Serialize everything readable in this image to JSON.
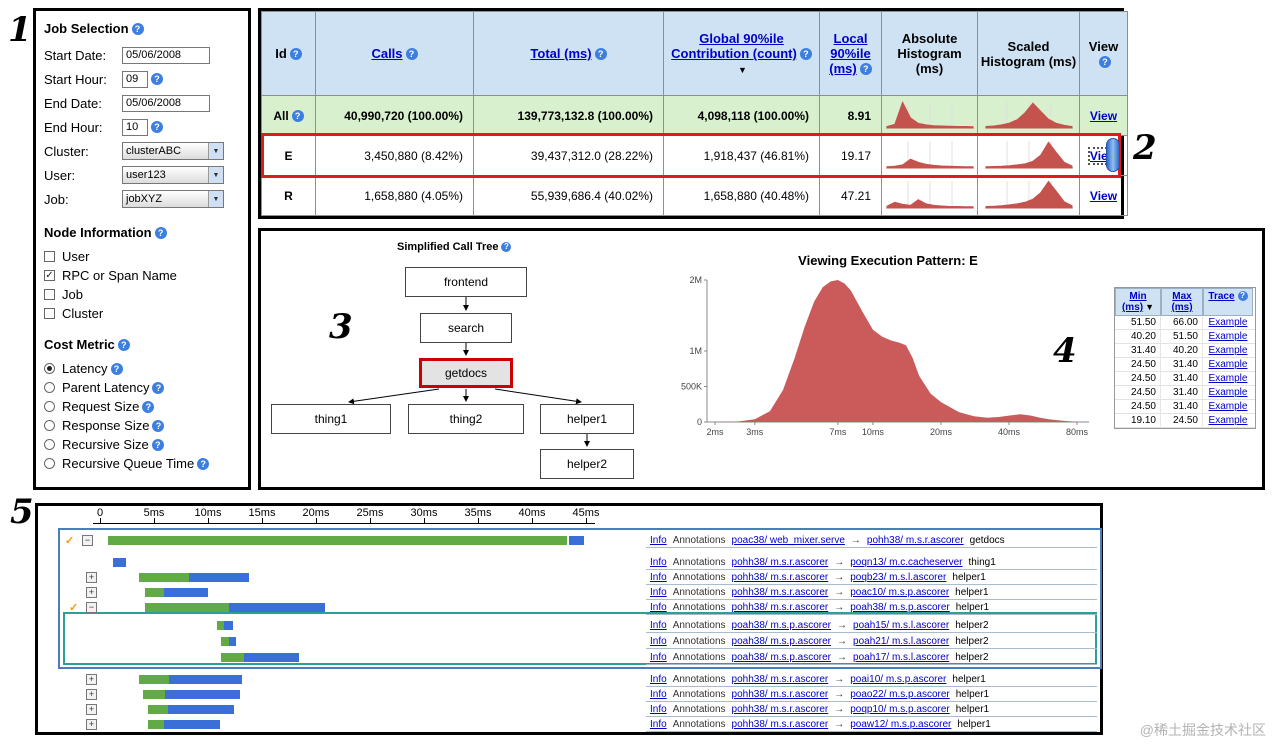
{
  "colors": {
    "hist_red": "#c4524d",
    "chart_red": "#cb5a5a",
    "bar_green": "#61aa45",
    "bar_blue": "#3a6fd8",
    "link_blue": "#0000cc"
  },
  "annotations": {
    "n1": "1",
    "n2": "2",
    "n3": "3",
    "n4": "4",
    "n5": "5"
  },
  "watermark": "@稀土掘金技术社区",
  "job_selection": {
    "title": "Job Selection",
    "fields": [
      {
        "label": "Start Date:",
        "value": "05/06/2008",
        "type": "date",
        "help": false
      },
      {
        "label": "Start Hour:",
        "value": "09",
        "type": "short",
        "help": true
      },
      {
        "label": "End Date:",
        "value": "05/06/2008",
        "type": "date",
        "help": false
      },
      {
        "label": "End Hour:",
        "value": "10",
        "type": "short",
        "help": true
      },
      {
        "label": "Cluster:",
        "value": "clusterABC",
        "type": "select",
        "help": false
      },
      {
        "label": "User:",
        "value": "user123",
        "type": "select",
        "help": false
      },
      {
        "label": "Job:",
        "value": "jobXYZ",
        "type": "select",
        "help": false
      }
    ],
    "node_information": {
      "title": "Node Information",
      "options": [
        {
          "label": "User",
          "checked": false
        },
        {
          "label": "RPC or Span Name",
          "checked": true
        },
        {
          "label": "Job",
          "checked": false
        },
        {
          "label": "Cluster",
          "checked": false
        }
      ]
    },
    "cost_metric": {
      "title": "Cost Metric",
      "options": [
        {
          "label": "Latency",
          "selected": true
        },
        {
          "label": "Parent Latency",
          "selected": false
        },
        {
          "label": "Request Size",
          "selected": false
        },
        {
          "label": "Response Size",
          "selected": false
        },
        {
          "label": "Recursive Size",
          "selected": false
        },
        {
          "label": "Recursive Queue Time",
          "selected": false
        }
      ]
    }
  },
  "summary_table": {
    "headers": [
      {
        "label": "Id"
      },
      {
        "label": "Calls"
      },
      {
        "label": "Total (ms)"
      },
      {
        "label": "Global 90%ile Contribution (count)"
      },
      {
        "label": "Local 90%ile (ms)"
      },
      {
        "label": "Absolute Histogram (ms)"
      },
      {
        "label": "Scaled Histogram (ms)"
      },
      {
        "label": "View"
      }
    ],
    "rows": [
      {
        "id": "All",
        "id_help": true,
        "calls": "40,990,720 (100.00%)",
        "total": "139,773,132.8 (100.00%)",
        "global_contribution": "4,098,118 (100.00%)",
        "local_90": "8.91",
        "view": "View",
        "row_style": "all",
        "view_focus": false,
        "abs_hist": [
          0.02,
          0.1,
          0.95,
          0.35,
          0.14,
          0.08,
          0.05,
          0.04,
          0.03,
          0.02,
          0.02,
          0.01
        ],
        "scaled_hist": [
          0.02,
          0.04,
          0.08,
          0.15,
          0.28,
          0.55,
          0.92,
          0.6,
          0.3,
          0.14,
          0.06,
          0.02
        ]
      },
      {
        "id": "E",
        "id_help": false,
        "calls": "3,450,880 (8.42%)",
        "total": "39,437,312.0 (28.22%)",
        "global_contribution": "1,918,437 (46.81%)",
        "local_90": "19.17",
        "view": "View",
        "row_style": "highlight",
        "view_focus": true,
        "abs_hist": [
          0.01,
          0.03,
          0.08,
          0.3,
          0.18,
          0.1,
          0.06,
          0.04,
          0.03,
          0.02,
          0.01,
          0.01
        ],
        "scaled_hist": [
          0.01,
          0.02,
          0.03,
          0.05,
          0.08,
          0.12,
          0.22,
          0.45,
          0.95,
          0.55,
          0.18,
          0.04
        ]
      },
      {
        "id": "R",
        "id_help": false,
        "calls": "1,658,880 (4.05%)",
        "total": "55,939,686.4 (40.02%)",
        "global_contribution": "1,658,880 (40.48%)",
        "local_90": "47.21",
        "view": "View",
        "row_style": "normal",
        "view_focus": false,
        "abs_hist": [
          0.03,
          0.18,
          0.1,
          0.06,
          0.28,
          0.12,
          0.06,
          0.04,
          0.02,
          0.02,
          0.01,
          0.01
        ],
        "scaled_hist": [
          0.02,
          0.03,
          0.05,
          0.08,
          0.12,
          0.18,
          0.3,
          0.55,
          0.98,
          0.6,
          0.2,
          0.05
        ]
      }
    ]
  },
  "call_tree": {
    "title": "Simplified Call Tree",
    "nodes": [
      {
        "name": "frontend",
        "highlight": false
      },
      {
        "name": "search",
        "highlight": false
      },
      {
        "name": "getdocs",
        "highlight": true
      },
      {
        "name": "thing1",
        "highlight": false
      },
      {
        "name": "thing2",
        "highlight": false
      },
      {
        "name": "helper1",
        "highlight": false
      },
      {
        "name": "helper2",
        "highlight": false
      }
    ]
  },
  "execution_pattern": {
    "title": "Viewing Execution Pattern: E",
    "chart": {
      "type": "area",
      "x_ticks": [
        "2ms",
        "3ms",
        "7ms",
        "10ms",
        "20ms",
        "40ms",
        "80ms"
      ],
      "y_ticks": [
        "2M",
        "1M",
        "500K",
        "0"
      ],
      "y_max": 2000000,
      "points_ms_count": [
        [
          2,
          0
        ],
        [
          2.5,
          5000
        ],
        [
          3,
          40000
        ],
        [
          3.5,
          150000
        ],
        [
          4,
          450000
        ],
        [
          4.5,
          900000
        ],
        [
          5,
          1350000
        ],
        [
          5.5,
          1700000
        ],
        [
          6,
          1900000
        ],
        [
          6.5,
          1980000
        ],
        [
          7,
          2000000
        ],
        [
          7.5,
          1950000
        ],
        [
          8,
          1850000
        ],
        [
          9,
          1550000
        ],
        [
          10,
          1300000
        ],
        [
          11,
          1200000
        ],
        [
          12,
          1150000
        ],
        [
          13,
          1120000
        ],
        [
          14,
          1080000
        ],
        [
          15,
          900000
        ],
        [
          16,
          650000
        ],
        [
          18,
          400000
        ],
        [
          20,
          280000
        ],
        [
          24,
          140000
        ],
        [
          28,
          80000
        ],
        [
          32,
          60000
        ],
        [
          36,
          70000
        ],
        [
          40,
          90000
        ],
        [
          45,
          110000
        ],
        [
          50,
          90000
        ],
        [
          55,
          60000
        ],
        [
          60,
          40000
        ],
        [
          70,
          15000
        ],
        [
          80,
          3000
        ]
      ]
    },
    "trace_table": {
      "headers": [
        {
          "label": "Min (ms)",
          "sort": true
        },
        {
          "label": "Max (ms)",
          "sort": false
        },
        {
          "label": "Trace",
          "help": true
        }
      ],
      "rows": [
        {
          "min": "51.50",
          "max": "66.00",
          "trace": "Example"
        },
        {
          "min": "40.20",
          "max": "51.50",
          "trace": "Example"
        },
        {
          "min": "31.40",
          "max": "40.20",
          "trace": "Example"
        },
        {
          "min": "24.50",
          "max": "31.40",
          "trace": "Example"
        },
        {
          "min": "24.50",
          "max": "31.40",
          "trace": "Example"
        },
        {
          "min": "24.50",
          "max": "31.40",
          "trace": "Example"
        },
        {
          "min": "24.50",
          "max": "31.40",
          "trace": "Example"
        },
        {
          "min": "19.10",
          "max": "24.50",
          "trace": "Example"
        }
      ]
    }
  },
  "timeline": {
    "ticks": [
      "0",
      "5ms",
      "10ms",
      "15ms",
      "20ms",
      "25ms",
      "30ms",
      "35ms",
      "40ms",
      "45ms"
    ],
    "info_label": "Info",
    "annotations_label": "Annotations",
    "rows": [
      {
        "name": "getdocs",
        "from": "poac38/ web_mixer.serve",
        "to": "pohh38/ m.s.r.ascorer",
        "check": true,
        "expander": "minus",
        "indent": 0,
        "segments": [
          {
            "c": "green",
            "a": 0.7,
            "b": 43.2
          },
          {
            "c": "blue",
            "a": 43.4,
            "b": 44.8
          }
        ]
      },
      {
        "name": "thing1",
        "from": "pohh38/ m.s.r.ascorer",
        "to": "poqn13/ m.c.cacheserver",
        "check": false,
        "expander": null,
        "indent": 1,
        "segments": [
          {
            "c": "blue",
            "a": 1.2,
            "b": 2.4
          }
        ]
      },
      {
        "name": "helper1",
        "from": "pohh38/ m.s.r.ascorer",
        "to": "poqb23/ m.s.l.ascorer",
        "check": false,
        "expander": "plus",
        "indent": 1,
        "segments": [
          {
            "c": "green",
            "a": 3.6,
            "b": 8.2
          },
          {
            "c": "blue",
            "a": 8.2,
            "b": 13.8
          }
        ]
      },
      {
        "name": "helper1",
        "from": "pohh38/ m.s.r.ascorer",
        "to": "poac10/ m.s.p.ascorer",
        "check": false,
        "expander": "plus",
        "indent": 1,
        "segments": [
          {
            "c": "green",
            "a": 4.2,
            "b": 5.9
          },
          {
            "c": "blue",
            "a": 5.9,
            "b": 10.0
          }
        ]
      },
      {
        "name": "helper1",
        "from": "pohh38/ m.s.r.ascorer",
        "to": "poah38/ m.s.p.ascorer",
        "check": true,
        "expander": "minus",
        "indent": 1,
        "segments": [
          {
            "c": "green",
            "a": 4.2,
            "b": 11.9
          },
          {
            "c": "blue",
            "a": 11.9,
            "b": 20.8
          }
        ]
      },
      {
        "name": "helper2",
        "from": "poah38/ m.s.p.ascorer",
        "to": "poah15/ m.s.l.ascorer",
        "check": false,
        "expander": null,
        "indent": 2,
        "segments": [
          {
            "c": "green",
            "a": 10.8,
            "b": 11.5
          },
          {
            "c": "blue",
            "a": 11.5,
            "b": 12.3
          }
        ]
      },
      {
        "name": "helper2",
        "from": "poah38/ m.s.p.ascorer",
        "to": "poah21/ m.s.l.ascorer",
        "check": false,
        "expander": null,
        "indent": 2,
        "segments": [
          {
            "c": "green",
            "a": 11.2,
            "b": 11.9
          },
          {
            "c": "blue",
            "a": 11.9,
            "b": 12.6
          }
        ]
      },
      {
        "name": "helper2",
        "from": "poah38/ m.s.p.ascorer",
        "to": "poah17/ m.s.l.ascorer",
        "check": false,
        "expander": null,
        "indent": 2,
        "segments": [
          {
            "c": "green",
            "a": 11.2,
            "b": 13.3
          },
          {
            "c": "blue",
            "a": 13.3,
            "b": 18.4
          }
        ]
      },
      {
        "name": "helper1",
        "from": "pohh38/ m.s.r.ascorer",
        "to": "poai10/ m.s.p.ascorer",
        "check": false,
        "expander": "plus",
        "indent": 1,
        "segments": [
          {
            "c": "green",
            "a": 3.6,
            "b": 6.4
          },
          {
            "c": "blue",
            "a": 6.4,
            "b": 13.2
          }
        ]
      },
      {
        "name": "helper1",
        "from": "pohh38/ m.s.r.ascorer",
        "to": "poao22/ m.s.p.ascorer",
        "check": false,
        "expander": "plus",
        "indent": 1,
        "segments": [
          {
            "c": "green",
            "a": 4.0,
            "b": 6.0
          },
          {
            "c": "blue",
            "a": 6.0,
            "b": 13.0
          }
        ]
      },
      {
        "name": "helper1",
        "from": "pohh38/ m.s.r.ascorer",
        "to": "poqp10/ m.s.p.ascorer",
        "check": false,
        "expander": "plus",
        "indent": 1,
        "segments": [
          {
            "c": "green",
            "a": 4.4,
            "b": 6.3
          },
          {
            "c": "blue",
            "a": 6.3,
            "b": 12.4
          }
        ]
      },
      {
        "name": "helper1",
        "from": "pohh38/ m.s.r.ascorer",
        "to": "poaw12/ m.s.p.ascorer",
        "check": false,
        "expander": "plus",
        "indent": 1,
        "segments": [
          {
            "c": "green",
            "a": 4.4,
            "b": 5.9
          },
          {
            "c": "blue",
            "a": 5.9,
            "b": 11.1
          }
        ]
      }
    ]
  }
}
